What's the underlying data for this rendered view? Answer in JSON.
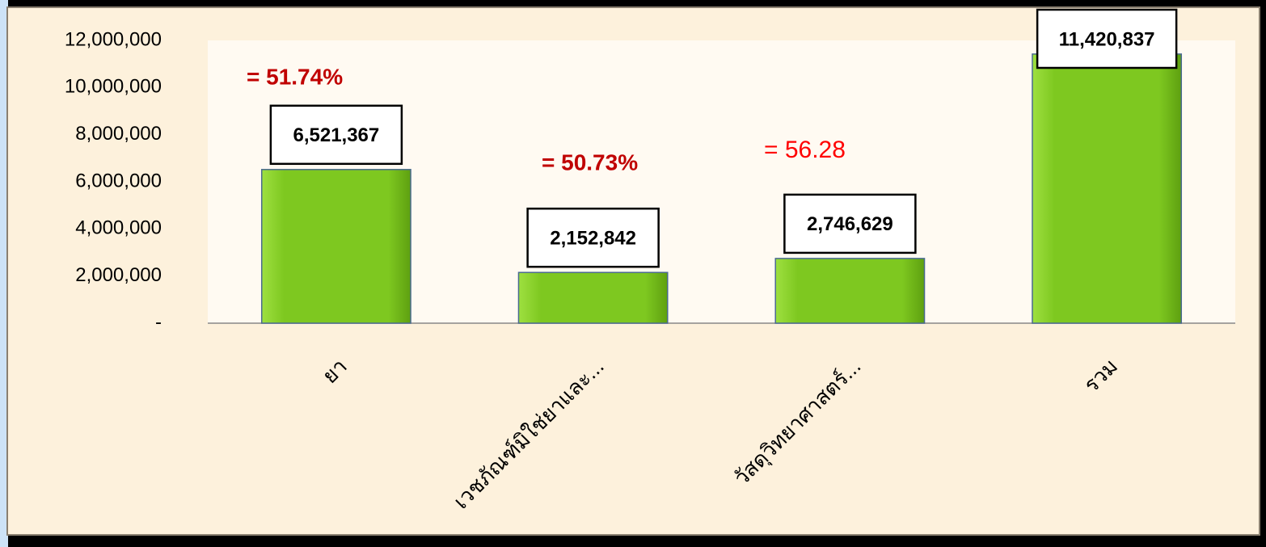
{
  "chart_data": {
    "type": "bar",
    "categories": [
      "ยา",
      "เวชภัณฑ์มิใช่ยาและ...",
      "วัสดุวิทยาศาสตร์...",
      "รวม"
    ],
    "values": [
      6521367,
      2152842,
      2746629,
      11420837
    ],
    "value_labels": [
      "6,521,367",
      "2,152,842",
      "2,746,629",
      "11,420,837"
    ],
    "color": "#7ec820",
    "ylim": [
      0,
      12000000
    ],
    "yticks": [
      {
        "value": 0,
        "label": "-"
      },
      {
        "value": 2000000,
        "label": "2,000,000"
      },
      {
        "value": 4000000,
        "label": "4,000,000"
      },
      {
        "value": 6000000,
        "label": "6,000,000"
      },
      {
        "value": 8000000,
        "label": "8,000,000"
      },
      {
        "value": 10000000,
        "label": "10,000,000"
      },
      {
        "value": 12000000,
        "label": "12,000,000"
      }
    ],
    "grid": false,
    "annotations": [
      "= 51.74%",
      "= 50.73%",
      "= 56.28"
    ]
  }
}
